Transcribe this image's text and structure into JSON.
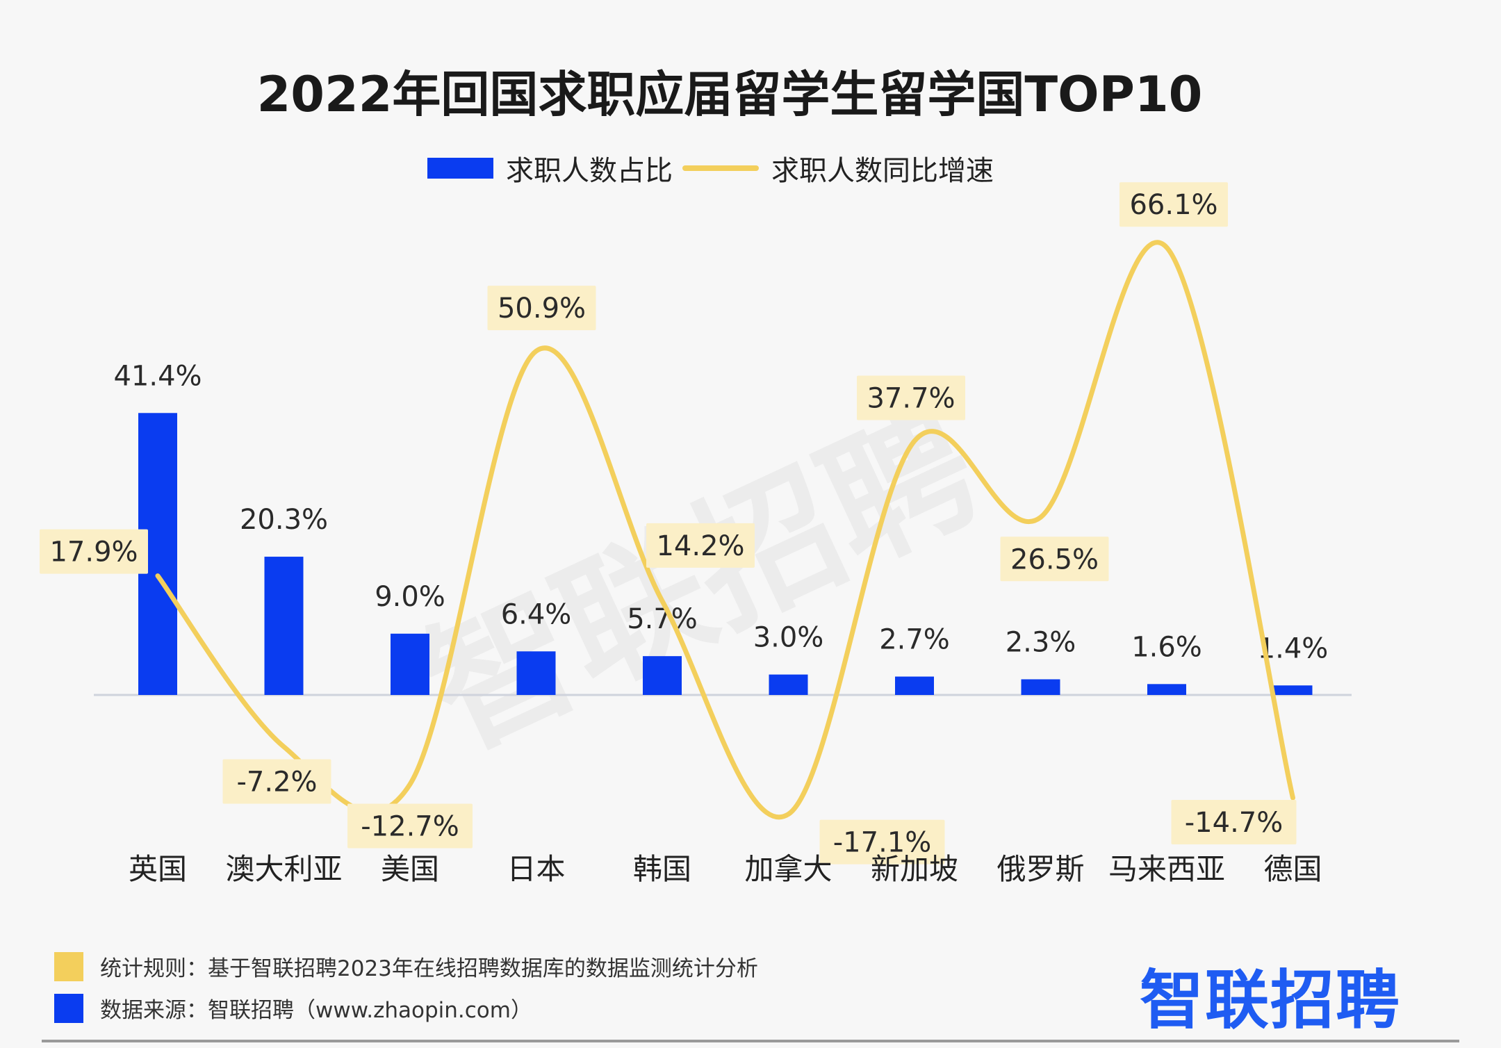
{
  "chart_data": {
    "type": "bar",
    "title": "2022年回国求职应届留学生留学国TOP10",
    "categories": [
      "英国",
      "澳大利亚",
      "美国",
      "日本",
      "韩国",
      "加拿大",
      "新加坡",
      "俄罗斯",
      "马来西亚",
      "德国"
    ],
    "series": [
      {
        "name": "求职人数占比",
        "type": "bar",
        "color": "#0a3cf0",
        "values": [
          41.4,
          20.3,
          9.0,
          6.4,
          5.7,
          3.0,
          2.7,
          2.3,
          1.6,
          1.4
        ],
        "labels": [
          "41.4%",
          "20.3%",
          "9.0%",
          "6.4%",
          "5.7%",
          "3.0%",
          "2.7%",
          "2.3%",
          "1.6%",
          "1.4%"
        ]
      },
      {
        "name": "求职人数同比增速",
        "type": "line",
        "color": "#f3cf5c",
        "values": [
          17.9,
          -7.2,
          -12.7,
          50.9,
          14.2,
          -17.1,
          37.7,
          26.5,
          66.1,
          -14.7
        ],
        "labels": [
          "17.9%",
          "-7.2%",
          "-12.7%",
          "50.9%",
          "14.2%",
          "-17.1%",
          "37.7%",
          "26.5%",
          "66.1%",
          "-14.7%"
        ]
      }
    ],
    "legend_position": "top-center",
    "grid": false
  },
  "footer": {
    "rule_label": "统计规则：基于智联招聘2023年在线招聘数据库的数据监测统计分析",
    "source_label": "数据来源：智联招聘（www.zhaopin.com）",
    "rule_color": "#f3cf5c",
    "source_color": "#0a3cf0"
  },
  "brand": {
    "logo_text": "智联招聘",
    "color": "#1f5cf2",
    "watermark_text": "智联招聘"
  }
}
